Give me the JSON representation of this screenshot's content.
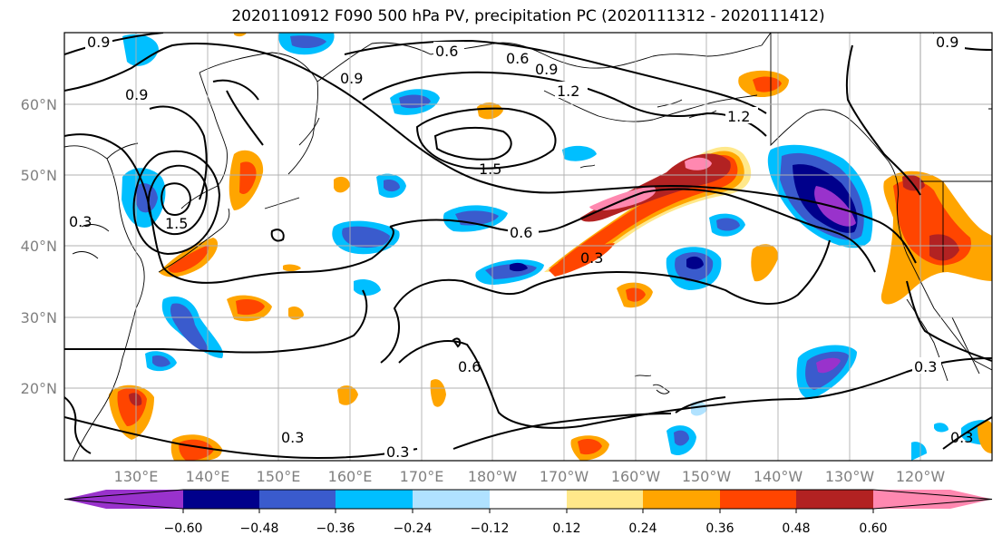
{
  "title": "2020110912 F090 500 hPa PV, precipitation PC (2020111312 - 2020111412)",
  "map": {
    "lat_labels": [
      "60°N",
      "50°N",
      "40°N",
      "30°N",
      "20°N"
    ],
    "lon_labels": [
      "130°E",
      "140°E",
      "150°E",
      "160°E",
      "170°E",
      "180°W",
      "170°W",
      "160°W",
      "150°W",
      "140°W",
      "130°W",
      "120°W"
    ],
    "pv_contour_labels": [
      "0.9",
      "0.6",
      "0.6",
      "0.9",
      "0.9",
      "1.2",
      "1.2",
      "1.5",
      "0.9",
      "1.5",
      "0.6",
      "0.3",
      "0.6",
      "0.3",
      "0.3",
      "0.3",
      "0.9",
      "0.3",
      "0.3"
    ]
  },
  "colorbar": {
    "tick_labels": [
      "−0.60",
      "−0.48",
      "−0.36",
      "−0.24",
      "−0.12",
      "0.12",
      "0.24",
      "0.36",
      "0.48",
      "0.60"
    ],
    "colors": [
      "#9932cc",
      "#00008b",
      "#3a5bcd",
      "#00bfff",
      "#b0e2ff",
      "#ffffff",
      "#ffe88a",
      "#ffa500",
      "#ff4500",
      "#b22222",
      "#ff88b0"
    ]
  },
  "colors": {
    "purple": "#9932cc",
    "navy": "#00008b",
    "royal": "#3a5bcd",
    "sky": "#00bfff",
    "pale": "#b0e2ff",
    "yellow": "#ffe88a",
    "orange": "#ffa500",
    "redorange": "#ff4500",
    "firebrick": "#b22222",
    "pink": "#ff88b0"
  }
}
